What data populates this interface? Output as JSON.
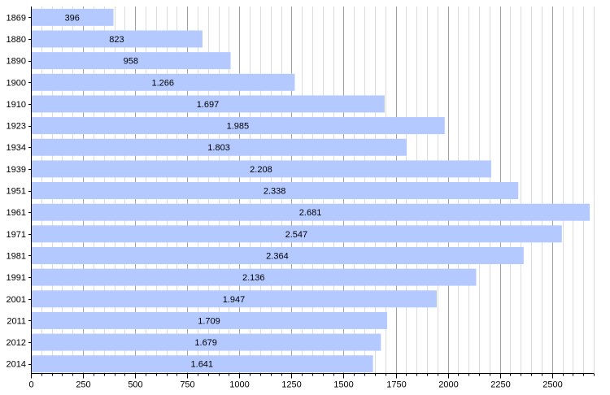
{
  "chart_data": {
    "type": "bar",
    "orientation": "horizontal",
    "title": "",
    "xlabel": "",
    "ylabel": "",
    "categories": [
      "1869",
      "1880",
      "1890",
      "1900",
      "1910",
      "1923",
      "1934",
      "1939",
      "1951",
      "1961",
      "1971",
      "1981",
      "1991",
      "2001",
      "2011",
      "2012",
      "2014"
    ],
    "values": [
      396,
      823,
      958,
      1266,
      1697,
      1985,
      1803,
      2208,
      2338,
      2681,
      2547,
      2364,
      2136,
      1947,
      1709,
      1679,
      1641
    ],
    "value_labels": [
      "396",
      "823",
      "958",
      "1.266",
      "1.697",
      "1.985",
      "1.803",
      "2.208",
      "2.338",
      "2.681",
      "2.547",
      "2.364",
      "2.136",
      "1.947",
      "1.709",
      "1.679",
      "1.641"
    ],
    "xlim": [
      0,
      2700
    ],
    "xticks": [
      0,
      250,
      500,
      750,
      1000,
      1250,
      1500,
      1750,
      2000,
      2250,
      2500
    ],
    "xtick_labels": [
      "0",
      "250",
      "500",
      "750",
      "1000",
      "1250",
      "1500",
      "1750",
      "2000",
      "2250",
      "2500"
    ],
    "minor_tick_step": 50,
    "grid": true,
    "bar_color": "#b3c9ff",
    "major_grid_color": "#a0a0a0",
    "minor_grid_color": "#dcdcdc",
    "axis_color": "#000000"
  }
}
